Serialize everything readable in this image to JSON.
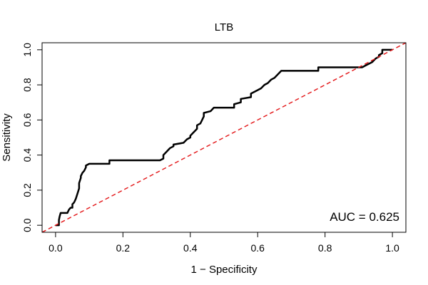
{
  "chart_data": {
    "type": "line",
    "title": "LTB",
    "xlabel": "1 − Specificity",
    "ylabel": "Sensitivity",
    "xlim": [
      -0.04,
      1.04
    ],
    "ylim": [
      -0.04,
      1.04
    ],
    "x_ticks": [
      0.0,
      0.2,
      0.4,
      0.6,
      0.8,
      1.0
    ],
    "x_tick_labels": [
      "0.0",
      "0.2",
      "0.4",
      "0.6",
      "0.8",
      "1.0"
    ],
    "y_ticks": [
      0.0,
      0.2,
      0.4,
      0.6,
      0.8,
      1.0
    ],
    "y_tick_labels": [
      "0.0",
      "0.2",
      "0.4",
      "0.6",
      "0.8",
      "1.0"
    ],
    "annotation": "AUC = 0.625",
    "colors": {
      "roc": "#000000",
      "reference": "#e41a1c"
    },
    "series": [
      {
        "name": "ROC",
        "style": "solid",
        "x": [
          0.0,
          0.01,
          0.01,
          0.012,
          0.015,
          0.018,
          0.02,
          0.035,
          0.04,
          0.045,
          0.05,
          0.05,
          0.055,
          0.06,
          0.065,
          0.07,
          0.07,
          0.075,
          0.075,
          0.08,
          0.085,
          0.09,
          0.09,
          0.1,
          0.16,
          0.16,
          0.31,
          0.32,
          0.32,
          0.33,
          0.34,
          0.35,
          0.35,
          0.38,
          0.39,
          0.4,
          0.4,
          0.41,
          0.42,
          0.42,
          0.43,
          0.435,
          0.44,
          0.44,
          0.46,
          0.47,
          0.53,
          0.53,
          0.55,
          0.55,
          0.58,
          0.58,
          0.6,
          0.61,
          0.62,
          0.63,
          0.64,
          0.65,
          0.66,
          0.67,
          0.78,
          0.78,
          0.91,
          0.92,
          0.94,
          0.95,
          0.96,
          0.96,
          0.97,
          0.97,
          1.0
        ],
        "y": [
          0.0,
          0.0,
          0.03,
          0.05,
          0.07,
          0.07,
          0.07,
          0.07,
          0.09,
          0.1,
          0.1,
          0.12,
          0.13,
          0.15,
          0.18,
          0.21,
          0.24,
          0.27,
          0.28,
          0.3,
          0.31,
          0.33,
          0.34,
          0.35,
          0.35,
          0.37,
          0.37,
          0.38,
          0.4,
          0.42,
          0.44,
          0.45,
          0.46,
          0.47,
          0.49,
          0.5,
          0.51,
          0.53,
          0.55,
          0.57,
          0.58,
          0.6,
          0.62,
          0.64,
          0.65,
          0.67,
          0.67,
          0.69,
          0.7,
          0.72,
          0.73,
          0.75,
          0.77,
          0.78,
          0.8,
          0.81,
          0.83,
          0.84,
          0.86,
          0.88,
          0.88,
          0.9,
          0.9,
          0.91,
          0.93,
          0.95,
          0.96,
          0.97,
          0.98,
          1.0,
          1.0
        ]
      },
      {
        "name": "reference",
        "style": "dashed",
        "x": [
          -0.04,
          1.04
        ],
        "y": [
          -0.04,
          1.04
        ]
      }
    ]
  }
}
